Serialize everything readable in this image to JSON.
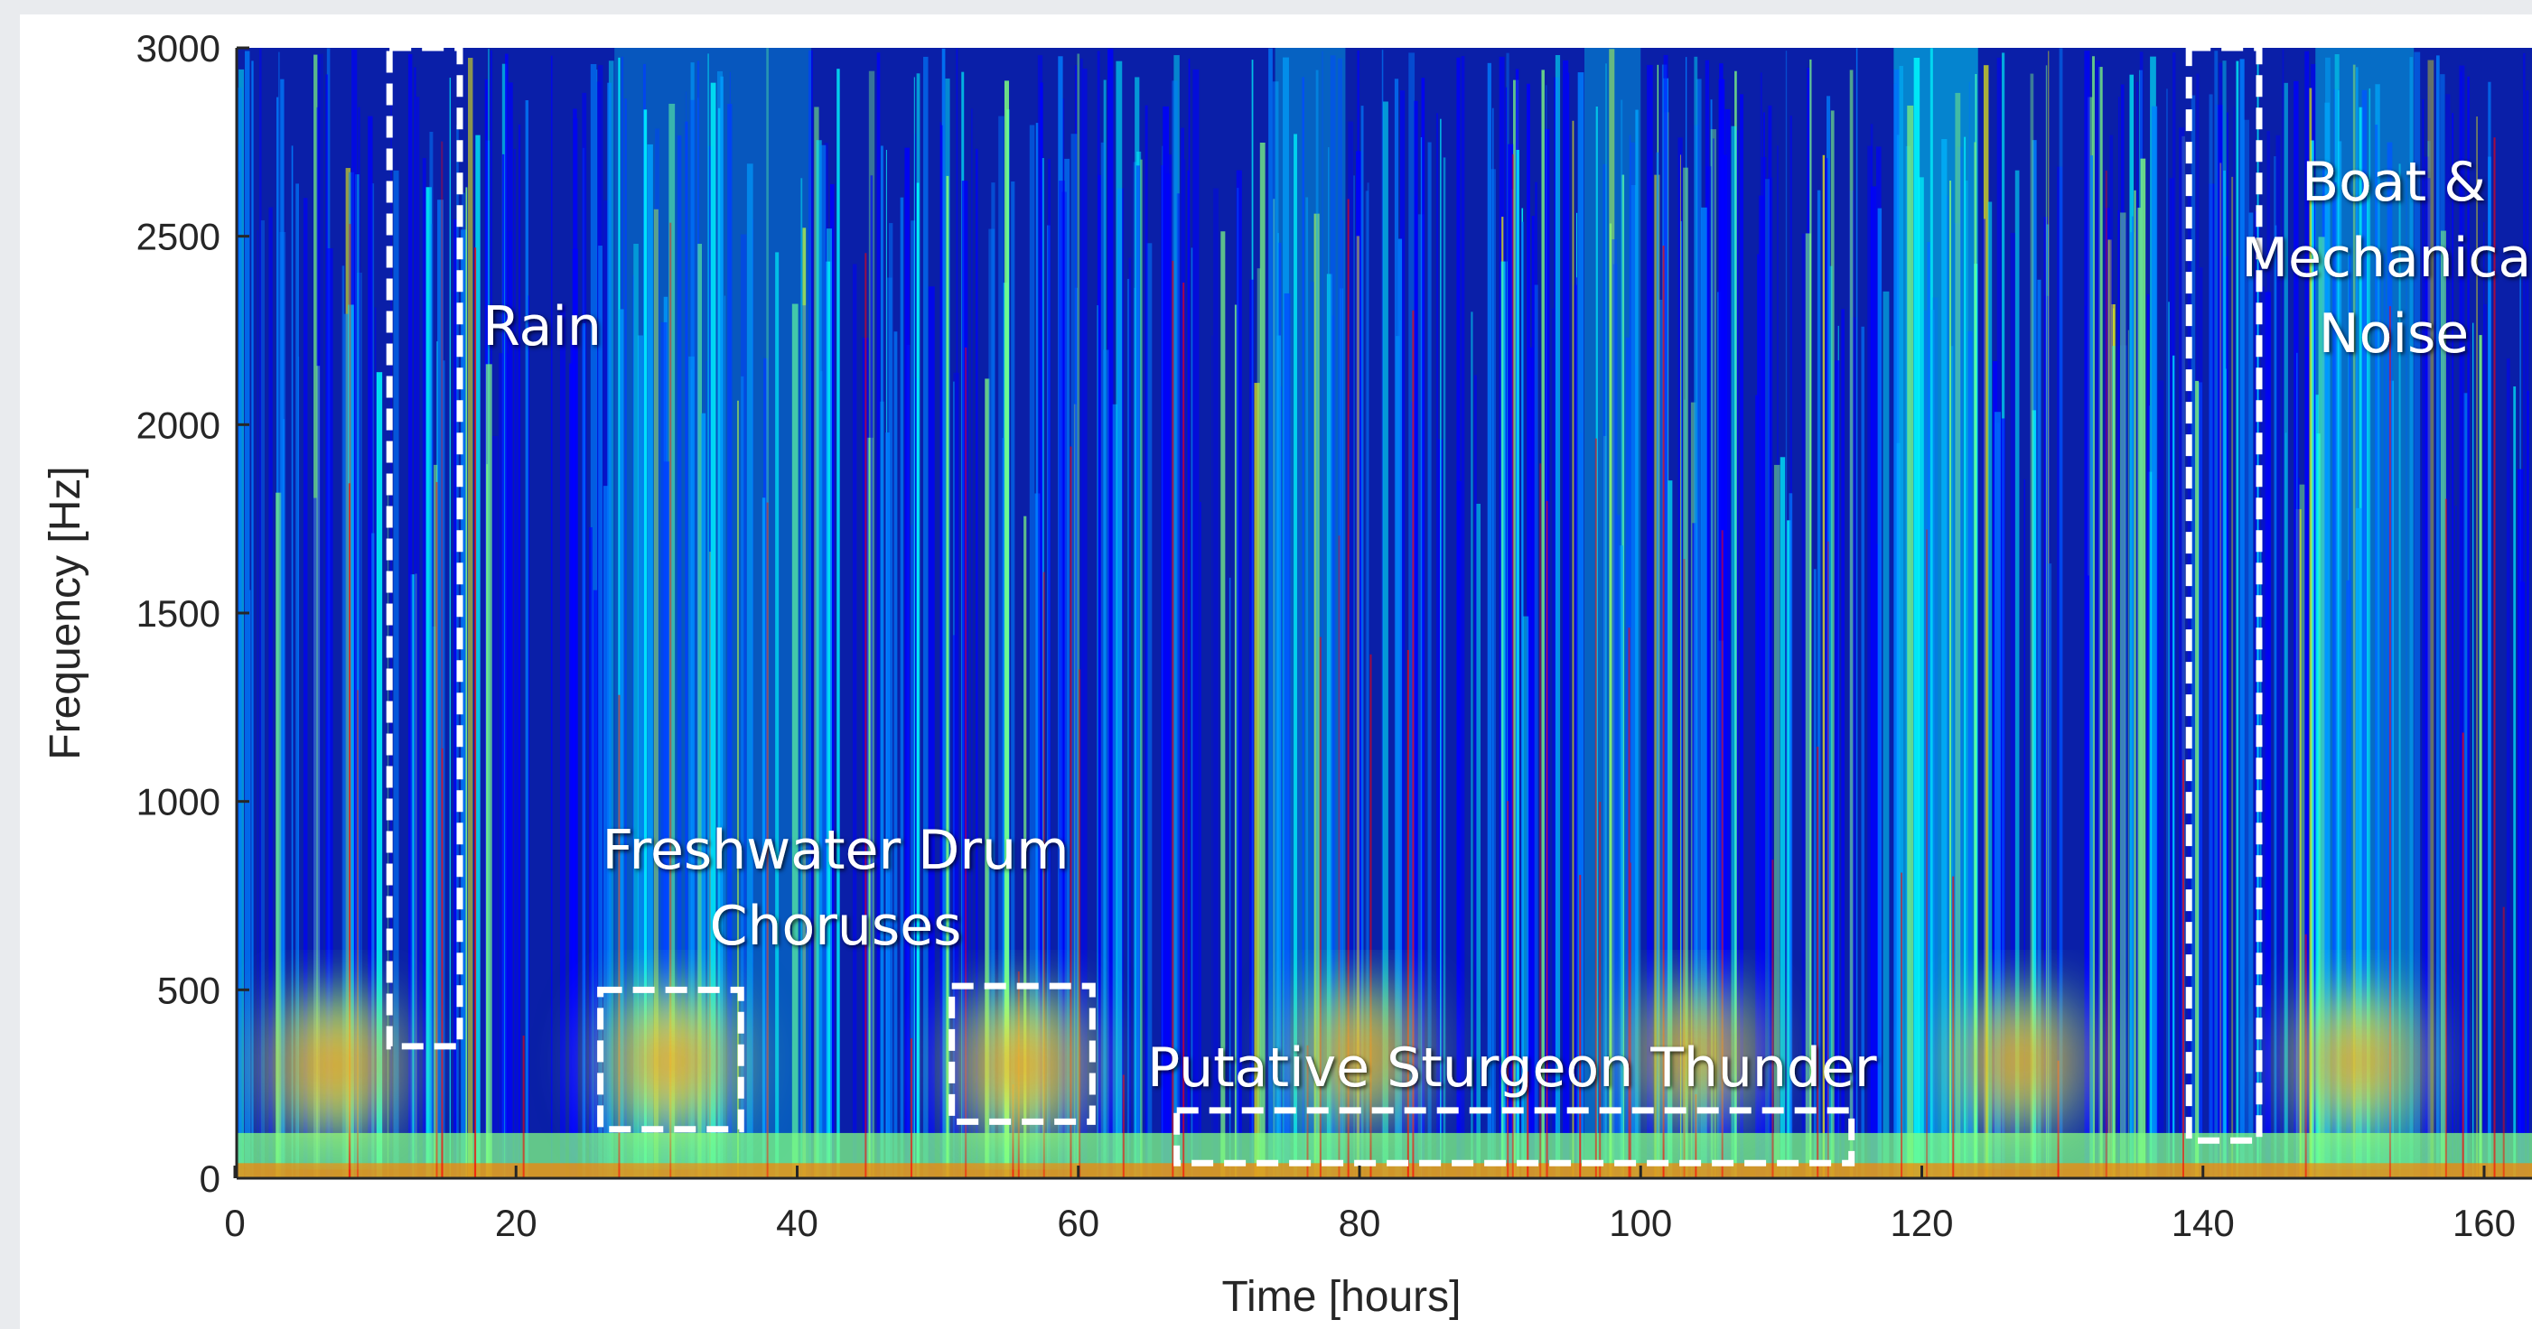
{
  "chart_data": {
    "type": "heatmap",
    "title": "",
    "xlabel": "Time [hours]",
    "ylabel": "Frequency [Hz]",
    "xlim": [
      0,
      166
    ],
    "ylim": [
      0,
      3000
    ],
    "xticks": [
      "0",
      "20",
      "40",
      "60",
      "80",
      "100",
      "120",
      "140",
      "160"
    ],
    "yticks": [
      "0",
      "500",
      "1000",
      "1500",
      "2000",
      "2500",
      "3000"
    ],
    "grid": false,
    "colormap": [
      "#00007f",
      "#0000ff",
      "#0080ff",
      "#00ffff",
      "#80ff80",
      "#ffff00",
      "#ff8000",
      "#ff0000",
      "#7f0000"
    ],
    "events": [
      {
        "time": 7,
        "freq": 300,
        "intensity": 0.9
      },
      {
        "time": 31,
        "freq": 310,
        "intensity": 0.95
      },
      {
        "time": 56,
        "freq": 300,
        "intensity": 0.95
      },
      {
        "time": 80,
        "freq": 330,
        "intensity": 0.7
      },
      {
        "time": 104,
        "freq": 330,
        "intensity": 0.65
      },
      {
        "time": 127,
        "freq": 310,
        "intensity": 0.75
      },
      {
        "time": 151,
        "freq": 310,
        "intensity": 0.8
      }
    ],
    "annotations": [
      {
        "label": "Rain",
        "lines": [
          "Rain"
        ],
        "box": {
          "x0": 11,
          "x1": 16,
          "y0": 350,
          "y1": 3000
        }
      },
      {
        "label": "Freshwater Drum Choruses",
        "lines": [
          "Freshwater Drum",
          "Choruses"
        ],
        "boxes": [
          {
            "x0": 26,
            "x1": 36,
            "y0": 130,
            "y1": 500
          },
          {
            "x0": 51,
            "x1": 61,
            "y0": 150,
            "y1": 510
          }
        ]
      },
      {
        "label": "Putative Sturgeon Thunder",
        "lines": [
          "Putative Sturgeon Thunder"
        ],
        "box": {
          "x0": 67,
          "x1": 115,
          "y0": 40,
          "y1": 180
        }
      },
      {
        "label": "Boat & Mechanical Noise",
        "lines": [
          "Boat &",
          "Mechanical",
          "Noise"
        ],
        "box": {
          "x0": 139,
          "x1": 144,
          "y0": 100,
          "y1": 3000
        }
      }
    ]
  }
}
